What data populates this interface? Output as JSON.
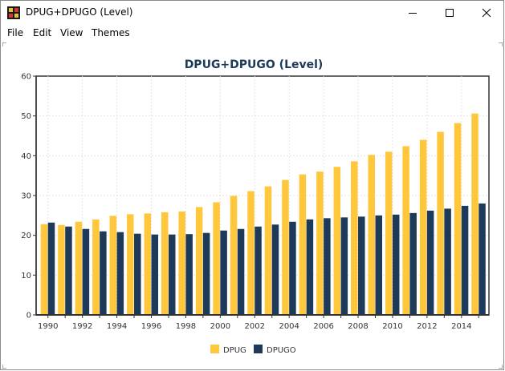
{
  "window": {
    "title": "DPUG+DPUGO (Level)",
    "controls": {
      "minimize": "minimize-icon",
      "maximize": "maximize-icon",
      "close": "close-icon"
    }
  },
  "menu": {
    "items": [
      {
        "label": "File"
      },
      {
        "label": "Edit"
      },
      {
        "label": "View"
      },
      {
        "label": "Themes"
      }
    ]
  },
  "colors": {
    "dpug": "#FFC73B",
    "dpugo": "#1E3A5A",
    "title": "#1E3A5A",
    "axis": "#333333",
    "grid": "#E6E6E6"
  },
  "chart_data": {
    "type": "bar",
    "title": "DPUG+DPUGO (Level)",
    "xlabel": "",
    "ylabel": "",
    "ylim": [
      0,
      60
    ],
    "yticks": [
      "0",
      "10",
      "20",
      "30",
      "40",
      "50",
      "60"
    ],
    "categories": [
      "1990",
      "1991",
      "1992",
      "1993",
      "1994",
      "1995",
      "1996",
      "1997",
      "1998",
      "1999",
      "2000",
      "2001",
      "2002",
      "2003",
      "2004",
      "2005",
      "2006",
      "2007",
      "2008",
      "2009",
      "2010",
      "2011",
      "2012",
      "2013",
      "2014",
      "2015"
    ],
    "xticks": [
      "1990",
      "1992",
      "1994",
      "1996",
      "1998",
      "2000",
      "2002",
      "2004",
      "2006",
      "2008",
      "2010",
      "2012",
      "2014"
    ],
    "series": [
      {
        "name": "DPUG",
        "values": [
          22.8,
          22.6,
          23.4,
          24.0,
          24.9,
          25.3,
          25.5,
          25.8,
          26.0,
          27.1,
          28.3,
          29.9,
          31.1,
          32.3,
          33.9,
          35.3,
          36.0,
          37.2,
          38.6,
          40.2,
          41.0,
          42.4,
          44.0,
          46.0,
          48.2,
          50.6
        ]
      },
      {
        "name": "DPUGO",
        "values": [
          23.2,
          22.2,
          21.6,
          21.0,
          20.8,
          20.4,
          20.2,
          20.2,
          20.3,
          20.6,
          21.2,
          21.6,
          22.2,
          22.7,
          23.4,
          24.0,
          24.3,
          24.5,
          24.7,
          25.0,
          25.2,
          25.6,
          26.2,
          26.7,
          27.4,
          28.0
        ]
      }
    ],
    "grid": true,
    "legend_position": "bottom-center"
  }
}
